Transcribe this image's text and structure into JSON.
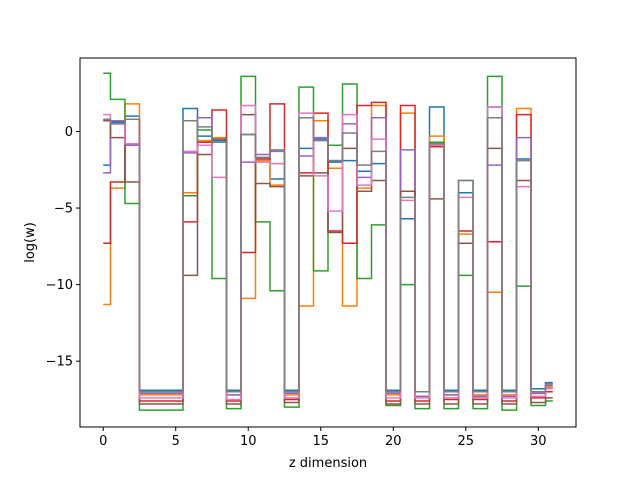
{
  "chart_data": {
    "type": "line",
    "step": "mid",
    "xlabel": "z dimension",
    "ylabel": "log(w)",
    "xlim": [
      -1.6,
      32.6
    ],
    "ylim": [
      -19.3,
      4.8
    ],
    "xticks": [
      0,
      5,
      10,
      15,
      20,
      25,
      30
    ],
    "xtick_labels": [
      "0",
      "5",
      "10",
      "15",
      "20",
      "25",
      "30"
    ],
    "yticks": [
      0,
      -5,
      -10,
      -15
    ],
    "ytick_labels": [
      "0",
      "−5",
      "−10",
      "−15"
    ],
    "grid": false,
    "x": [
      0,
      1,
      2,
      3,
      4,
      5,
      6,
      7,
      8,
      9,
      10,
      11,
      12,
      13,
      14,
      15,
      16,
      17,
      18,
      19,
      20,
      21,
      22,
      23,
      24,
      25,
      26,
      27,
      28,
      29,
      30,
      31
    ],
    "series": [
      {
        "color": "#1f77b4",
        "values": [
          -2.2,
          0.6,
          1.0,
          -16.9,
          -16.9,
          -16.9,
          1.5,
          -0.3,
          -0.6,
          -16.9,
          -0.2,
          -1.7,
          -3.1,
          -16.9,
          -1.1,
          -0.5,
          -2.0,
          -1.9,
          -2.6,
          -2.1,
          -16.9,
          -5.7,
          -17.0,
          1.6,
          -16.9,
          -4.0,
          -16.9,
          1.6,
          -16.9,
          -1.8,
          -16.8,
          -16.4
        ]
      },
      {
        "color": "#ff7f0e",
        "values": [
          -11.3,
          -3.7,
          1.8,
          -17.2,
          -17.2,
          -17.2,
          -4.0,
          -0.6,
          -0.4,
          -17.2,
          -10.9,
          -1.9,
          -3.5,
          -17.2,
          -11.4,
          0.7,
          -2.4,
          -11.4,
          -3.7,
          1.7,
          -17.2,
          1.2,
          -17.3,
          -0.3,
          -17.2,
          -6.7,
          -17.2,
          -10.5,
          -17.2,
          1.5,
          -17.1,
          -16.7
        ]
      },
      {
        "color": "#2ca02c",
        "values": [
          3.8,
          2.1,
          -4.7,
          -18.2,
          -18.2,
          -18.2,
          -4.2,
          0.1,
          -9.6,
          -18.1,
          3.6,
          -5.9,
          -10.4,
          -18.0,
          2.9,
          -9.1,
          -0.9,
          3.1,
          -9.6,
          -6.1,
          -17.9,
          -10.0,
          -18.1,
          -0.7,
          -18.1,
          -9.4,
          -18.1,
          3.6,
          -18.2,
          -10.1,
          -17.9,
          -17.6
        ]
      },
      {
        "color": "#d62728",
        "values": [
          -7.3,
          -3.3,
          0.8,
          -17.6,
          -17.6,
          -17.6,
          -5.9,
          -0.7,
          1.4,
          -17.6,
          -7.9,
          -1.8,
          1.8,
          -17.5,
          -2.7,
          1.2,
          -6.5,
          -7.3,
          1.7,
          1.9,
          -17.6,
          1.7,
          -17.6,
          -1.0,
          -17.5,
          -6.5,
          -17.5,
          -7.2,
          -17.6,
          1.1,
          -17.4,
          -17.0
        ]
      },
      {
        "color": "#9467bd",
        "values": [
          -2.7,
          0.7,
          -0.9,
          -17.1,
          -17.1,
          -17.1,
          -1.4,
          0.9,
          -0.7,
          -17.2,
          -2.0,
          -1.5,
          -1.3,
          -17.1,
          -1.6,
          -0.4,
          -1.9,
          0.5,
          -3.0,
          0.9,
          -17.1,
          -1.2,
          -17.3,
          -0.9,
          -17.2,
          -3.2,
          -17.3,
          -2.2,
          -17.3,
          -0.4,
          -17.1,
          -16.6
        ]
      },
      {
        "color": "#8c564b",
        "values": [
          0.7,
          -0.4,
          -3.3,
          -17.8,
          -17.8,
          -17.8,
          -9.4,
          -1.5,
          -0.5,
          -17.8,
          1.1,
          -3.4,
          -3.6,
          -17.7,
          -2.9,
          -2.7,
          -6.6,
          -1.1,
          -3.9,
          -3.2,
          -17.8,
          -3.9,
          -17.8,
          -4.4,
          -17.8,
          -7.3,
          -17.8,
          -1.1,
          -17.8,
          -3.2,
          -17.7,
          -17.4
        ]
      },
      {
        "color": "#e377c2",
        "values": [
          1.1,
          0.5,
          -0.8,
          -17.4,
          -17.4,
          -17.4,
          -1.3,
          -0.9,
          -3.0,
          -17.5,
          1.7,
          -2.0,
          -2.1,
          -17.4,
          1.2,
          -2.9,
          -5.2,
          1.1,
          -3.5,
          -0.5,
          -17.4,
          -4.5,
          -17.4,
          -0.9,
          -17.4,
          -4.3,
          -17.4,
          1.6,
          -17.4,
          -3.6,
          -17.3,
          -16.8
        ]
      },
      {
        "color": "#7f7f7f",
        "values": [
          0.8,
          0.5,
          0.8,
          -17.0,
          -17.0,
          -17.0,
          0.7,
          0.3,
          -0.7,
          -17.0,
          -0.2,
          -1.7,
          -1.2,
          -17.0,
          0.9,
          -0.6,
          -1.9,
          -0.1,
          -2.2,
          -1.3,
          -17.0,
          -4.3,
          -17.0,
          -0.8,
          -17.0,
          -3.2,
          -17.0,
          0.9,
          -17.0,
          -1.9,
          -17.0,
          -16.5
        ]
      }
    ]
  }
}
